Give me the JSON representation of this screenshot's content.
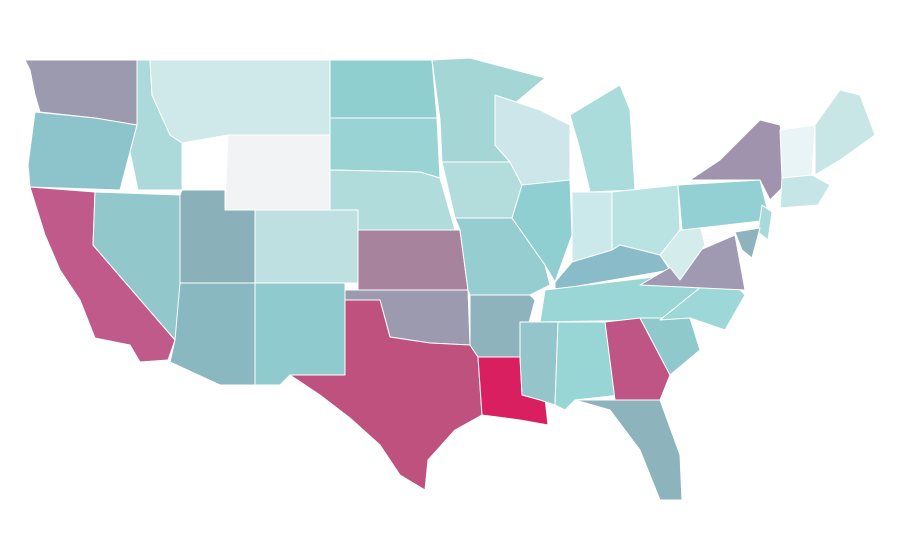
{
  "map": {
    "fills": [
      "#9b9aae",
      "#8dc4cb",
      "#c05a8a",
      "#92c7cc",
      "#acd9d9",
      "#cfe9ea",
      "#f1f3f4",
      "#8ab1ba",
      "#8ab8c0",
      "#bfe0e0",
      "#8fcacf",
      "#8fcfcf",
      "#9ad3d4",
      "#b1dcdc",
      "#a7839e",
      "#9b9aae",
      "#bf517f",
      "#a4d6d6",
      "#b3dddd",
      "#96cdd0",
      "#8fb3bd",
      "#d91f60",
      "#cde6ea",
      "#8fcfd2",
      "#aadcdc",
      "#cbe8ea",
      "#b9e2e2",
      "#89bcc8",
      "#9bd6d6",
      "#93c5ca",
      "#97d6d5",
      "#bf5585",
      "#8db3bd",
      "#8fc9cc",
      "#9dd7d7",
      "#9f9ab2",
      "#d5ecec",
      "#93d0d3",
      "#9f93ad",
      "#a9dadb",
      "#8fb3bd",
      "#e8f4f5",
      "#c8e6e6",
      "#c5e5e6"
    ]
  }
}
